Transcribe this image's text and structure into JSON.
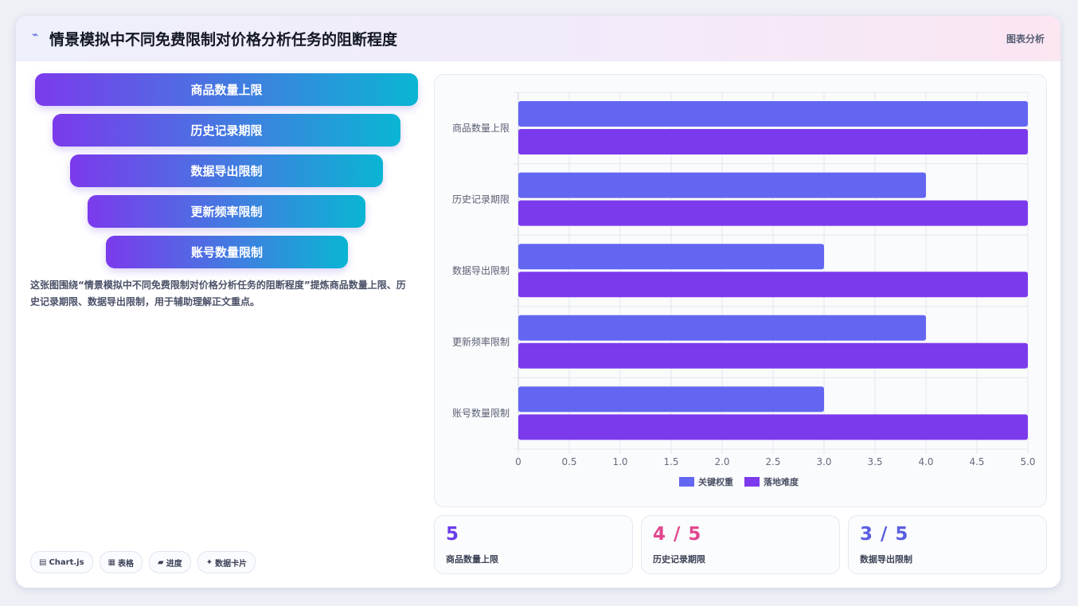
{
  "header": {
    "title": "情景模拟中不同免费限制对价格分析任务的阻断程度",
    "tag": "图表分析",
    "icon": "pulse-icon"
  },
  "funnel": {
    "steps": [
      "商品数量上限",
      "历史记录期限",
      "数据导出限制",
      "更新频率限制",
      "账号数量限制"
    ]
  },
  "description": "这张图围绕“情景模拟中不同免费限制对价格分析任务的阻断程度”提炼商品数量上限、历史记录期限、数据导出限制，用于辅助理解正文重点。",
  "chips": [
    {
      "icon": "chart-icon",
      "glyph": "▤",
      "label": "Chart.js"
    },
    {
      "icon": "table-icon",
      "glyph": "▦",
      "label": "表格"
    },
    {
      "icon": "progress-icon",
      "glyph": "▰",
      "label": "进度"
    },
    {
      "icon": "sparkle-icon",
      "glyph": "✦",
      "label": "数据卡片"
    }
  ],
  "stats": [
    {
      "value": "5",
      "label": "商品数量上限",
      "color": "#6a3de8"
    },
    {
      "value": "4 / 5",
      "label": "历史记录期限",
      "color": "#e0488f"
    },
    {
      "value": "3 / 5",
      "label": "数据导出限制",
      "color": "#5a5fe0"
    }
  ],
  "chart_data": {
    "type": "bar",
    "orientation": "horizontal",
    "categories": [
      "商品数量上限",
      "历史记录期限",
      "数据导出限制",
      "更新频率限制",
      "账号数量限制"
    ],
    "series": [
      {
        "name": "关键权重",
        "values": [
          5,
          4,
          3,
          4,
          3
        ],
        "color": "#6366f1"
      },
      {
        "name": "落地难度",
        "values": [
          5,
          5,
          5,
          5,
          5
        ],
        "color": "#7c3aed"
      }
    ],
    "xlim": [
      0,
      5
    ],
    "xticks": [
      "0",
      "0.5",
      "1.0",
      "1.5",
      "2.0",
      "2.5",
      "3.0",
      "3.5",
      "4.0",
      "4.5",
      "5.0"
    ],
    "grid": true,
    "legend": "bottom"
  }
}
